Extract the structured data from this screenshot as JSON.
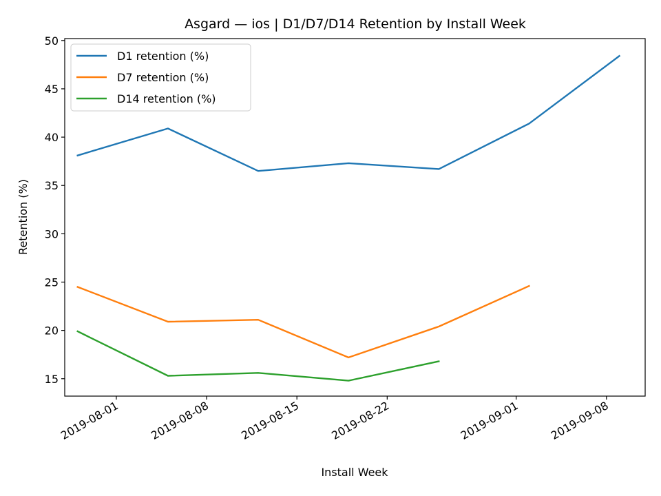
{
  "chart_data": {
    "type": "line",
    "title": "Asgard — ios | D1/D7/D14 Retention by Install Week",
    "xlabel": "Install Week",
    "ylabel": "Retention (%)",
    "x_type": "date",
    "x_range": [
      "2019-07-28",
      "2019-09-11"
    ],
    "ylim": [
      13.2,
      50.2
    ],
    "x_ticks": [
      "2019-08-01",
      "2019-08-08",
      "2019-08-15",
      "2019-08-22",
      "2019-09-01",
      "2019-09-08"
    ],
    "y_ticks": [
      15,
      20,
      25,
      30,
      35,
      40,
      45,
      50
    ],
    "grid": false,
    "legend_position": "upper-left",
    "series": [
      {
        "name": "D1 retention (%)",
        "color": "#1f77b4",
        "x": [
          "2019-07-29",
          "2019-08-05",
          "2019-08-12",
          "2019-08-19",
          "2019-08-26",
          "2019-09-02",
          "2019-09-09"
        ],
        "values": [
          38.1,
          40.9,
          36.5,
          37.3,
          36.7,
          41.4,
          48.4
        ]
      },
      {
        "name": "D7 retention (%)",
        "color": "#ff7f0e",
        "x": [
          "2019-07-29",
          "2019-08-05",
          "2019-08-12",
          "2019-08-19",
          "2019-08-26",
          "2019-09-02"
        ],
        "values": [
          24.5,
          20.9,
          21.1,
          17.2,
          20.4,
          24.6
        ]
      },
      {
        "name": "D14 retention (%)",
        "color": "#2ca02c",
        "x": [
          "2019-07-29",
          "2019-08-05",
          "2019-08-12",
          "2019-08-19",
          "2019-08-26"
        ],
        "values": [
          19.9,
          15.3,
          15.6,
          14.8,
          16.8
        ]
      }
    ]
  }
}
